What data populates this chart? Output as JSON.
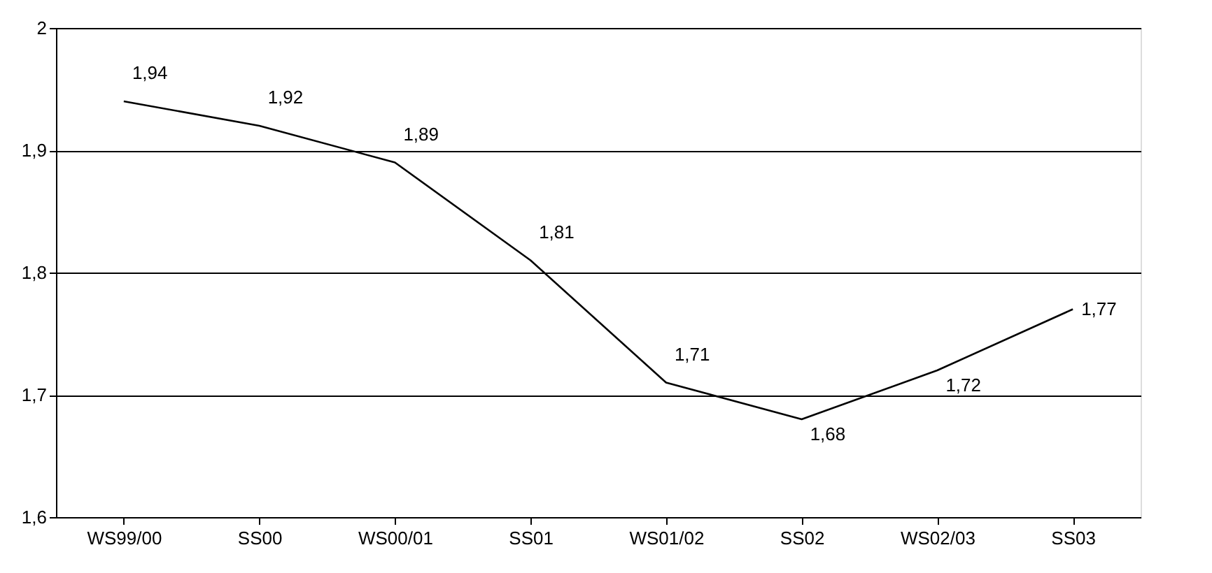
{
  "chart_data": {
    "type": "line",
    "categories": [
      "WS99/00",
      "SS00",
      "WS00/01",
      "SS01",
      "WS01/02",
      "SS02",
      "WS02/03",
      "SS03"
    ],
    "series": [
      {
        "color": "#000000",
        "values": [
          1.94,
          1.92,
          1.89,
          1.81,
          1.71,
          1.68,
          1.72,
          1.77
        ]
      }
    ],
    "value_labels": [
      "1,94",
      "1,92",
      "1,89",
      "1,81",
      "1,71",
      "1,68",
      "1,72",
      "1,77"
    ],
    "ylim": [
      1.6,
      2
    ],
    "yticks": [
      {
        "value": 1.6,
        "label": "1,6"
      },
      {
        "value": 1.7,
        "label": "1,7"
      },
      {
        "value": 1.8,
        "label": "1,8"
      },
      {
        "value": 1.9,
        "label": "1,9"
      },
      {
        "value": 2,
        "label": "2"
      }
    ],
    "grid": "y",
    "legend": false,
    "marker": "none",
    "line_style": "solid"
  }
}
